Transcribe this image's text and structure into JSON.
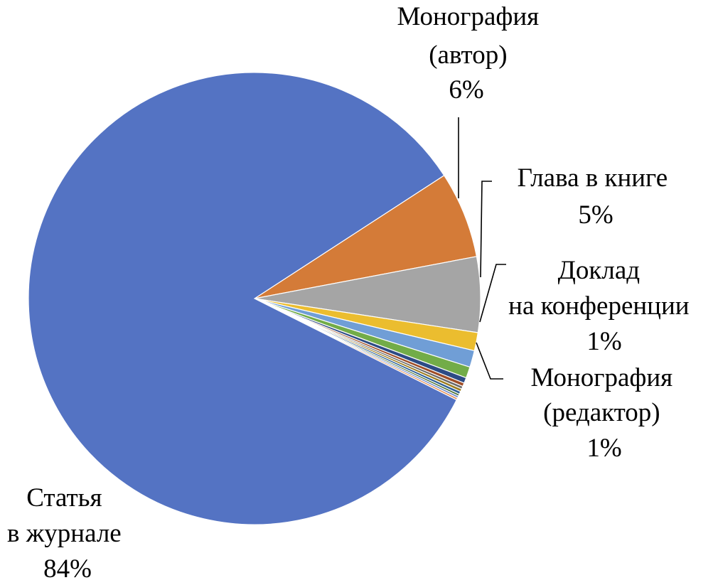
{
  "chart_data": {
    "type": "pie",
    "start_angle_deg": -33,
    "direction": "clockwise",
    "slices": [
      {
        "name": "Монография (автор)",
        "value": 6.2,
        "color": "#D47B38"
      },
      {
        "name": "Глава в книге",
        "value": 5.4,
        "color": "#A5A5A5"
      },
      {
        "name": "Доклад на конференции",
        "value": 1.3,
        "color": "#EBBD2F"
      },
      {
        "name": "Монография (редактор)",
        "value": 1.2,
        "color": "#709ED6"
      },
      {
        "name": "",
        "value": 0.8,
        "color": "#72AC48"
      },
      {
        "name": "",
        "value": 0.4,
        "color": "#2D4B85"
      },
      {
        "name": "",
        "value": 0.25,
        "color": "#A04E27"
      },
      {
        "name": "",
        "value": 0.2,
        "color": "#696969"
      },
      {
        "name": "",
        "value": 0.2,
        "color": "#9C7C1E"
      },
      {
        "name": "",
        "value": 0.2,
        "color": "#2E6097"
      },
      {
        "name": "",
        "value": 0.15,
        "color": "#466E2E"
      },
      {
        "name": "",
        "value": 0.15,
        "color": "#6A87C9"
      },
      {
        "name": "",
        "value": 0.15,
        "color": "#E3915A"
      },
      {
        "name": "Статья в журнале",
        "value": 83.6,
        "color": "#5473C3"
      }
    ],
    "labels": [
      {
        "lines": [
          "Монография",
          "(автор)",
          "6%"
        ]
      },
      {
        "lines": [
          "Глава в книге",
          "5%"
        ]
      },
      {
        "lines": [
          "Доклад",
          "на конференции",
          "1%"
        ]
      },
      {
        "lines": [
          "Монография",
          "(редактор)",
          "1%"
        ]
      },
      {
        "lines": [
          "Статья",
          "в журнале",
          "84%"
        ]
      }
    ]
  }
}
